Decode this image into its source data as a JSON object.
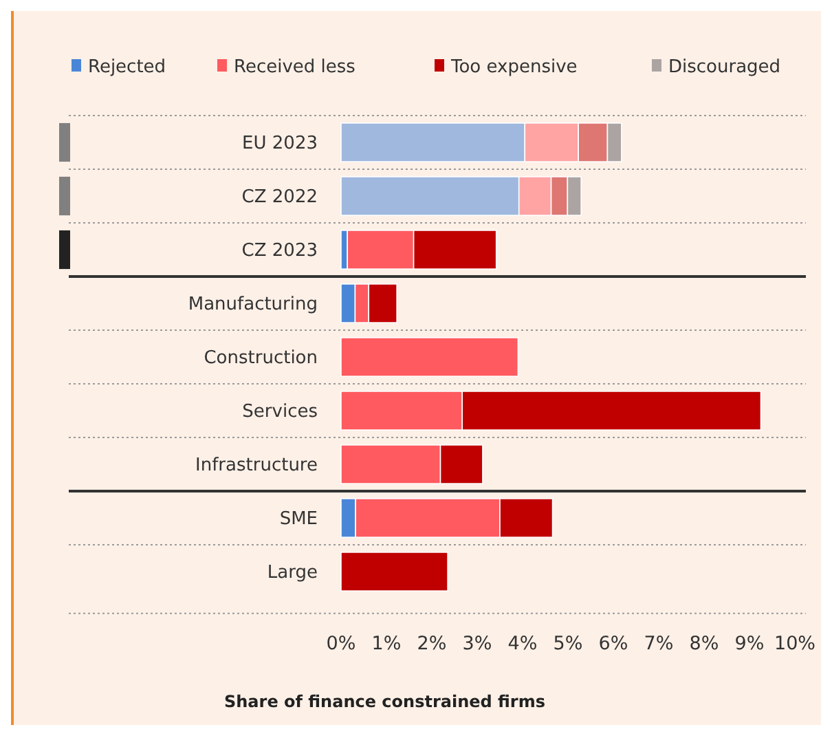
{
  "chart_data": {
    "type": "bar",
    "orientation": "horizontal",
    "stacked": true,
    "xlabel": "Share of finance constrained firms",
    "categories": [
      "EU 2023",
      "CZ 2022",
      "CZ 2023",
      "Manufacturing",
      "Construction",
      "Services",
      "Infrastructure",
      "SME",
      "Large"
    ],
    "series": [
      {
        "name": "Rejected",
        "color": "#4a86d8",
        "colors": [
          "#a0b8de",
          "#a0b8de",
          "#4a86d8",
          "#4a86d8",
          null,
          null,
          null,
          "#4a86d8",
          null
        ],
        "values": [
          4.05,
          3.92,
          0.14,
          0.31,
          null,
          null,
          null,
          0.32,
          null
        ]
      },
      {
        "name": "Received less",
        "color": "#ff5a5f",
        "colors": [
          "#ffa3a3",
          "#ffa3a3",
          "#ff5a5f",
          "#ff5a5f",
          "#ff5a5f",
          "#ff5a5f",
          "#ff5a5f",
          "#ff5a5f",
          null
        ],
        "values": [
          1.18,
          0.71,
          1.46,
          0.3,
          3.9,
          2.67,
          2.19,
          3.18,
          null
        ]
      },
      {
        "name": "Too expensive",
        "color": "#c00000",
        "colors": [
          "#de7672",
          "#de7672",
          "#c00000",
          "#c00000",
          null,
          "#c00000",
          "#c00000",
          "#c00000",
          "#c00000"
        ],
        "values": [
          0.64,
          0.36,
          1.82,
          0.62,
          null,
          6.58,
          0.93,
          1.16,
          2.35
        ]
      },
      {
        "name": "Discouraged",
        "color": "#aca4a2",
        "values": [
          0.31,
          0.3,
          null,
          null,
          null,
          null,
          null,
          null,
          null
        ]
      }
    ],
    "xlim": [
      0,
      10
    ],
    "xticks": [
      {
        "value": 0,
        "label": "0%"
      },
      {
        "value": 1,
        "label": "1%"
      },
      {
        "value": 2,
        "label": "2%"
      },
      {
        "value": 3,
        "label": "3%"
      },
      {
        "value": 4,
        "label": "4%"
      },
      {
        "value": 5,
        "label": "5%"
      },
      {
        "value": 6,
        "label": "6%"
      },
      {
        "value": 7,
        "label": "7%"
      },
      {
        "value": 8,
        "label": "8%"
      },
      {
        "value": 9,
        "label": "9%"
      },
      {
        "value": 10,
        "label": "10%"
      }
    ],
    "grid": true,
    "legend": "top"
  }
}
